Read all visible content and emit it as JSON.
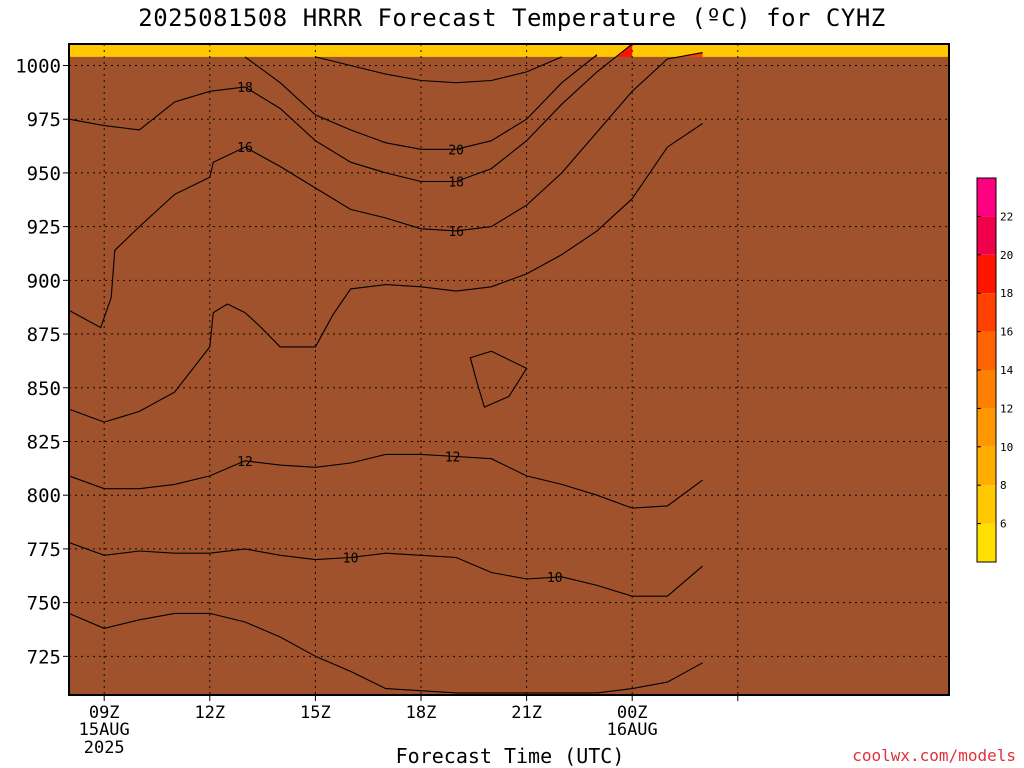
{
  "chart_data": {
    "type": "heatmap",
    "title": "2025081508 HRRR Forecast Temperature (ºC) for CYHZ",
    "xlabel": "Forecast Time (UTC)",
    "credit": "coolwx.com/models",
    "y_axis": {
      "label": "",
      "scale": "pressure (inverted)",
      "ylim": [
        1010,
        707
      ],
      "ticks": [
        {
          "value": 725,
          "label": "725"
        },
        {
          "value": 750,
          "label": "750"
        },
        {
          "value": 775,
          "label": "775"
        },
        {
          "value": 800,
          "label": "800"
        },
        {
          "value": 825,
          "label": "825"
        },
        {
          "value": 850,
          "label": "850"
        },
        {
          "value": 875,
          "label": "875"
        },
        {
          "value": 900,
          "label": "900"
        },
        {
          "value": 925,
          "label": "925"
        },
        {
          "value": 950,
          "label": "950"
        },
        {
          "value": 975,
          "label": "975"
        },
        {
          "value": 1000,
          "label": "1000"
        }
      ]
    },
    "x_axis": {
      "xlim": [
        8,
        33
      ],
      "ticks": [
        {
          "value": 9,
          "label": "09Z",
          "sub1": "15AUG",
          "sub2": "2025"
        },
        {
          "value": 12,
          "label": "12Z",
          "sub1": "",
          "sub2": ""
        },
        {
          "value": 15,
          "label": "15Z",
          "sub1": "",
          "sub2": ""
        },
        {
          "value": 18,
          "label": "18Z",
          "sub1": "",
          "sub2": ""
        },
        {
          "value": 21,
          "label": "21Z",
          "sub1": "",
          "sub2": ""
        },
        {
          "value": 24,
          "label": "00Z",
          "sub1": "16AUG",
          "sub2": ""
        },
        {
          "value": 27,
          "label": "",
          "sub1": "",
          "sub2": ""
        }
      ]
    },
    "grid": "dotted",
    "colorbar": {
      "placement": "right",
      "levels": [
        {
          "lo": 4,
          "hi": 6,
          "color": "#ffe000"
        },
        {
          "lo": 6,
          "hi": 8,
          "color": "#ffc800"
        },
        {
          "lo": 8,
          "hi": 10,
          "color": "#ffae00"
        },
        {
          "lo": 10,
          "hi": 12,
          "color": "#ff9800"
        },
        {
          "lo": 12,
          "hi": 14,
          "color": "#ff8000"
        },
        {
          "lo": 14,
          "hi": 16,
          "color": "#ff6400"
        },
        {
          "lo": 16,
          "hi": 18,
          "color": "#ff4000"
        },
        {
          "lo": 18,
          "hi": 20,
          "color": "#ff1400"
        },
        {
          "lo": 20,
          "hi": 22,
          "color": "#f0004a"
        },
        {
          "lo": 22,
          "hi": 24,
          "color": "#ff0080"
        }
      ],
      "labels": [
        {
          "value": 6,
          "label": "6"
        },
        {
          "value": 8,
          "label": "8"
        },
        {
          "value": 10,
          "label": "10"
        },
        {
          "value": 12,
          "label": "12"
        },
        {
          "value": 14,
          "label": "14"
        },
        {
          "value": 16,
          "label": "16"
        },
        {
          "value": 18,
          "label": "18"
        },
        {
          "value": 20,
          "label": "20"
        },
        {
          "value": 22,
          "label": "22"
        }
      ]
    },
    "ground_color": "#a0522d",
    "contours": [
      {
        "level": 8,
        "points": [
          [
            8,
            745
          ],
          [
            9,
            738
          ],
          [
            10,
            742
          ],
          [
            11,
            745
          ],
          [
            12,
            745
          ],
          [
            13,
            741
          ],
          [
            14,
            734
          ],
          [
            15,
            725
          ],
          [
            16,
            718
          ],
          [
            17,
            710
          ],
          [
            18,
            709
          ],
          [
            19,
            708
          ],
          [
            20,
            708
          ],
          [
            21,
            708
          ],
          [
            22,
            708
          ],
          [
            23,
            708
          ],
          [
            24,
            710
          ],
          [
            25,
            713
          ],
          [
            26,
            722
          ]
        ]
      },
      {
        "level": 10,
        "points": [
          [
            8,
            778
          ],
          [
            9,
            772
          ],
          [
            10,
            774
          ],
          [
            11,
            773
          ],
          [
            12,
            773
          ],
          [
            13,
            775
          ],
          [
            14,
            772
          ],
          [
            15,
            770
          ],
          [
            16,
            771
          ],
          [
            17,
            773
          ],
          [
            18,
            772
          ],
          [
            19,
            771
          ],
          [
            20,
            764
          ],
          [
            21,
            761
          ],
          [
            22,
            762
          ],
          [
            23,
            758
          ],
          [
            24,
            753
          ],
          [
            25,
            753
          ],
          [
            26,
            767
          ]
        ]
      },
      {
        "level": 12,
        "points": [
          [
            8,
            809
          ],
          [
            9,
            803
          ],
          [
            10,
            803
          ],
          [
            11,
            805
          ],
          [
            12,
            809
          ],
          [
            13,
            816
          ],
          [
            14,
            814
          ],
          [
            15,
            813
          ],
          [
            16,
            815
          ],
          [
            17,
            819
          ],
          [
            18,
            819
          ],
          [
            19,
            818
          ],
          [
            20,
            817
          ],
          [
            21,
            809
          ],
          [
            22,
            805
          ],
          [
            23,
            800
          ],
          [
            24,
            794
          ],
          [
            25,
            795
          ],
          [
            26,
            807
          ]
        ]
      },
      {
        "level": 14,
        "points": [
          [
            8,
            840
          ],
          [
            9,
            834
          ],
          [
            10,
            839
          ],
          [
            11,
            848
          ],
          [
            12,
            869
          ],
          [
            12.1,
            885
          ],
          [
            12.5,
            889
          ],
          [
            13,
            885
          ],
          [
            13.4,
            879
          ],
          [
            14,
            869
          ],
          [
            15,
            869
          ],
          [
            15.5,
            884
          ],
          [
            16,
            896
          ],
          [
            17,
            898
          ],
          [
            18,
            897
          ],
          [
            19,
            895
          ],
          [
            20,
            897
          ],
          [
            21,
            903
          ],
          [
            22,
            912
          ],
          [
            23,
            923
          ],
          [
            24,
            938
          ],
          [
            25,
            962
          ],
          [
            26,
            973
          ]
        ]
      },
      {
        "level": 16,
        "points": [
          [
            8,
            886
          ],
          [
            8.9,
            878
          ],
          [
            9.2,
            892
          ],
          [
            9.3,
            914
          ],
          [
            10,
            925
          ],
          [
            11,
            940
          ],
          [
            12,
            948
          ],
          [
            12.1,
            955
          ],
          [
            13,
            962
          ],
          [
            14,
            953
          ],
          [
            15,
            943
          ],
          [
            16,
            933
          ],
          [
            17,
            929
          ],
          [
            18,
            924
          ],
          [
            19,
            923
          ],
          [
            20,
            925
          ],
          [
            21,
            935
          ],
          [
            22,
            950
          ],
          [
            23,
            969
          ],
          [
            24,
            988
          ],
          [
            25,
            1003
          ],
          [
            26,
            1006
          ]
        ]
      },
      {
        "level": 18,
        "points": [
          [
            8,
            975
          ],
          [
            9,
            972
          ],
          [
            10,
            970
          ],
          [
            11,
            983
          ],
          [
            12,
            988
          ],
          [
            13,
            990
          ],
          [
            14,
            980
          ],
          [
            15,
            965
          ],
          [
            16,
            955
          ],
          [
            17,
            950
          ],
          [
            18,
            946
          ],
          [
            19,
            946
          ],
          [
            20,
            952
          ],
          [
            21,
            965
          ],
          [
            22,
            982
          ],
          [
            23,
            997
          ],
          [
            24,
            1010
          ]
        ]
      },
      {
        "level": 20,
        "points": [
          [
            13,
            1004
          ],
          [
            14,
            992
          ],
          [
            15,
            977
          ],
          [
            16,
            970
          ],
          [
            17,
            964
          ],
          [
            18,
            961
          ],
          [
            19,
            961
          ],
          [
            20,
            965
          ],
          [
            21,
            975
          ],
          [
            22,
            992
          ],
          [
            23,
            1005
          ]
        ]
      },
      {
        "level": 22,
        "points": [
          [
            15,
            1004
          ],
          [
            16,
            1000
          ],
          [
            17,
            996
          ],
          [
            18,
            993
          ],
          [
            19,
            992
          ],
          [
            20,
            993
          ],
          [
            21,
            997
          ],
          [
            22,
            1004
          ]
        ]
      },
      {
        "level": 12,
        "points": [
          [
            19.8,
            841
          ],
          [
            20.5,
            846
          ],
          [
            21,
            859
          ],
          [
            20,
            867
          ],
          [
            19.4,
            864
          ],
          [
            19.6,
            852
          ],
          [
            19.8,
            841
          ]
        ],
        "closed": true
      }
    ],
    "contour_labels": [
      {
        "text": "10",
        "x": 16.0,
        "y": 771
      },
      {
        "text": "10",
        "x": 21.8,
        "y": 762
      },
      {
        "text": "12",
        "x": 13.0,
        "y": 816
      },
      {
        "text": "12",
        "x": 18.9,
        "y": 818
      },
      {
        "text": "16",
        "x": 13.0,
        "y": 962
      },
      {
        "text": "16",
        "x": 19.0,
        "y": 923
      },
      {
        "text": "18",
        "x": 13.0,
        "y": 990
      },
      {
        "text": "18",
        "x": 19.0,
        "y": 946
      },
      {
        "text": "20",
        "x": 19.0,
        "y": 961
      }
    ]
  }
}
